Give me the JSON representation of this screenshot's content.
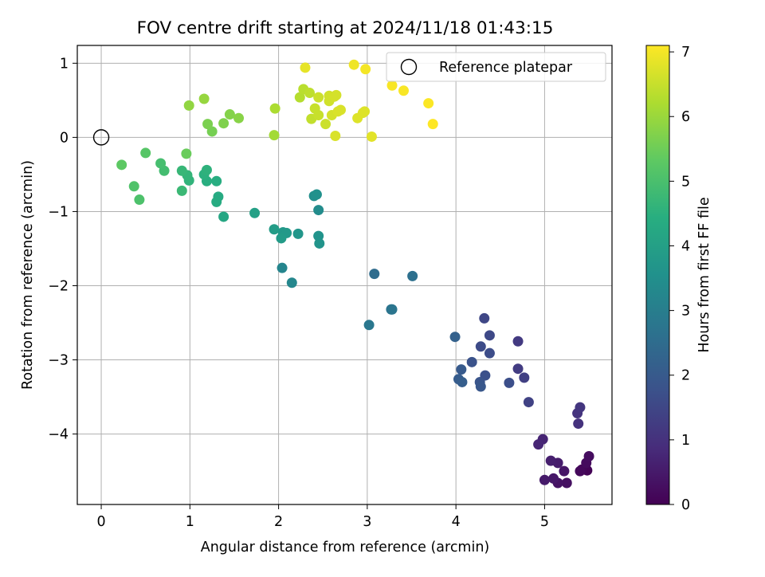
{
  "chart_data": {
    "type": "scatter",
    "title": "FOV centre drift starting at 2024/11/18 01:43:15",
    "xlabel": "Angular distance from reference (arcmin)",
    "ylabel": "Rotation from reference (arcmin)",
    "xlim": [
      -0.27,
      5.76
    ],
    "ylim": [
      -4.95,
      1.24
    ],
    "xticks": [
      0,
      1,
      2,
      3,
      4,
      5
    ],
    "yticks": [
      -4,
      -3,
      -2,
      -1,
      0,
      1
    ],
    "xtick_labels": [
      "0",
      "1",
      "2",
      "3",
      "4",
      "5"
    ],
    "ytick_labels": [
      "−4",
      "−3",
      "−2",
      "−1",
      "0",
      "1"
    ],
    "grid": true,
    "colorbar": {
      "label": "Hours from first FF file",
      "colormap": "viridis",
      "range": [
        0,
        7.1
      ],
      "ticks": [
        0,
        1,
        2,
        3,
        4,
        5,
        6,
        7
      ],
      "tick_labels": [
        "0",
        "1",
        "2",
        "3",
        "4",
        "5",
        "6",
        "7"
      ]
    },
    "legend": {
      "position": "top-right",
      "entries": [
        "Reference platepar"
      ]
    },
    "reference_point": {
      "label": "Reference platepar",
      "x": 0,
      "y": 0,
      "marker": "open-circle"
    },
    "points": [
      {
        "x": 5.48,
        "y": -4.49,
        "h": 0.05
      },
      {
        "x": 5.42,
        "y": -4.48,
        "h": 0.1
      },
      {
        "x": 5.4,
        "y": -4.5,
        "h": 0.15
      },
      {
        "x": 5.47,
        "y": -4.39,
        "h": 0.2
      },
      {
        "x": 5.5,
        "y": -4.3,
        "h": 0.25
      },
      {
        "x": 5.25,
        "y": -4.66,
        "h": 0.3
      },
      {
        "x": 5.15,
        "y": -4.66,
        "h": 0.35
      },
      {
        "x": 5.22,
        "y": -4.5,
        "h": 0.4
      },
      {
        "x": 5.1,
        "y": -4.6,
        "h": 0.45
      },
      {
        "x": 5.0,
        "y": -4.62,
        "h": 0.5
      },
      {
        "x": 5.15,
        "y": -4.39,
        "h": 0.55
      },
      {
        "x": 5.07,
        "y": -4.36,
        "h": 0.6
      },
      {
        "x": 4.98,
        "y": -4.07,
        "h": 0.7
      },
      {
        "x": 4.93,
        "y": -4.14,
        "h": 0.75
      },
      {
        "x": 5.38,
        "y": -3.86,
        "h": 1.0
      },
      {
        "x": 5.37,
        "y": -3.72,
        "h": 1.05
      },
      {
        "x": 5.4,
        "y": -3.64,
        "h": 1.1
      },
      {
        "x": 4.7,
        "y": -2.75,
        "h": 1.2
      },
      {
        "x": 4.7,
        "y": -3.12,
        "h": 1.25
      },
      {
        "x": 4.77,
        "y": -3.24,
        "h": 1.35
      },
      {
        "x": 4.82,
        "y": -3.57,
        "h": 1.4
      },
      {
        "x": 4.32,
        "y": -2.44,
        "h": 1.5
      },
      {
        "x": 4.38,
        "y": -2.67,
        "h": 1.55
      },
      {
        "x": 4.28,
        "y": -2.82,
        "h": 1.6
      },
      {
        "x": 4.38,
        "y": -2.91,
        "h": 1.65
      },
      {
        "x": 4.6,
        "y": -3.31,
        "h": 1.7
      },
      {
        "x": 4.33,
        "y": -3.21,
        "h": 1.75
      },
      {
        "x": 4.18,
        "y": -3.03,
        "h": 1.8
      },
      {
        "x": 4.27,
        "y": -3.3,
        "h": 1.85
      },
      {
        "x": 4.28,
        "y": -3.36,
        "h": 1.9
      },
      {
        "x": 4.06,
        "y": -3.13,
        "h": 2.0
      },
      {
        "x": 4.03,
        "y": -3.26,
        "h": 2.05
      },
      {
        "x": 4.07,
        "y": -3.3,
        "h": 2.1
      },
      {
        "x": 3.99,
        "y": -2.69,
        "h": 2.2
      },
      {
        "x": 3.08,
        "y": -1.84,
        "h": 2.5
      },
      {
        "x": 3.51,
        "y": -1.87,
        "h": 2.6
      },
      {
        "x": 3.27,
        "y": -2.32,
        "h": 2.7
      },
      {
        "x": 3.28,
        "y": -2.32,
        "h": 2.75
      },
      {
        "x": 3.02,
        "y": -2.53,
        "h": 2.8
      },
      {
        "x": 2.04,
        "y": -1.76,
        "h": 3.2
      },
      {
        "x": 2.15,
        "y": -1.96,
        "h": 3.25
      },
      {
        "x": 2.45,
        "y": -0.98,
        "h": 3.4
      },
      {
        "x": 2.4,
        "y": -0.79,
        "h": 3.5
      },
      {
        "x": 2.43,
        "y": -0.77,
        "h": 3.55
      },
      {
        "x": 2.45,
        "y": -1.33,
        "h": 3.6
      },
      {
        "x": 2.46,
        "y": -1.43,
        "h": 3.65
      },
      {
        "x": 2.22,
        "y": -1.3,
        "h": 3.7
      },
      {
        "x": 2.05,
        "y": -1.28,
        "h": 3.75
      },
      {
        "x": 2.09,
        "y": -1.29,
        "h": 3.8
      },
      {
        "x": 2.03,
        "y": -1.36,
        "h": 3.85
      },
      {
        "x": 1.95,
        "y": -1.24,
        "h": 3.9
      },
      {
        "x": 1.73,
        "y": -1.02,
        "h": 4.0
      },
      {
        "x": 1.38,
        "y": -1.07,
        "h": 4.2
      },
      {
        "x": 1.32,
        "y": -0.8,
        "h": 4.3
      },
      {
        "x": 1.3,
        "y": -0.87,
        "h": 4.35
      },
      {
        "x": 1.3,
        "y": -0.59,
        "h": 4.4
      },
      {
        "x": 1.19,
        "y": -0.59,
        "h": 4.45
      },
      {
        "x": 1.16,
        "y": -0.5,
        "h": 4.5
      },
      {
        "x": 1.19,
        "y": -0.44,
        "h": 4.55
      },
      {
        "x": 0.99,
        "y": -0.58,
        "h": 4.6
      },
      {
        "x": 0.97,
        "y": -0.51,
        "h": 4.65
      },
      {
        "x": 0.91,
        "y": -0.45,
        "h": 4.7
      },
      {
        "x": 0.91,
        "y": -0.72,
        "h": 4.75
      },
      {
        "x": 0.71,
        "y": -0.45,
        "h": 4.9
      },
      {
        "x": 0.67,
        "y": -0.35,
        "h": 4.95
      },
      {
        "x": 0.43,
        "y": -0.84,
        "h": 5.05
      },
      {
        "x": 0.37,
        "y": -0.66,
        "h": 5.1
      },
      {
        "x": 0.5,
        "y": -0.21,
        "h": 5.2
      },
      {
        "x": 0.23,
        "y": -0.37,
        "h": 5.3
      },
      {
        "x": 0.96,
        "y": -0.22,
        "h": 5.45
      },
      {
        "x": 1.25,
        "y": 0.08,
        "h": 5.6
      },
      {
        "x": 1.2,
        "y": 0.18,
        "h": 5.65
      },
      {
        "x": 1.38,
        "y": 0.19,
        "h": 5.7
      },
      {
        "x": 1.45,
        "y": 0.31,
        "h": 5.75
      },
      {
        "x": 1.55,
        "y": 0.26,
        "h": 5.8
      },
      {
        "x": 0.99,
        "y": 0.43,
        "h": 5.9
      },
      {
        "x": 1.16,
        "y": 0.52,
        "h": 5.95
      },
      {
        "x": 1.95,
        "y": 0.03,
        "h": 6.1
      },
      {
        "x": 1.96,
        "y": 0.39,
        "h": 6.2
      },
      {
        "x": 2.24,
        "y": 0.54,
        "h": 6.3
      },
      {
        "x": 2.28,
        "y": 0.65,
        "h": 6.35
      },
      {
        "x": 2.35,
        "y": 0.6,
        "h": 6.4
      },
      {
        "x": 2.37,
        "y": 0.25,
        "h": 6.45
      },
      {
        "x": 2.41,
        "y": 0.39,
        "h": 6.5
      },
      {
        "x": 2.45,
        "y": 0.54,
        "h": 6.55
      },
      {
        "x": 2.45,
        "y": 0.3,
        "h": 6.5
      },
      {
        "x": 2.53,
        "y": 0.18,
        "h": 6.55
      },
      {
        "x": 2.57,
        "y": 0.49,
        "h": 6.6
      },
      {
        "x": 2.57,
        "y": 0.56,
        "h": 6.6
      },
      {
        "x": 2.6,
        "y": 0.3,
        "h": 6.65
      },
      {
        "x": 2.63,
        "y": 0.55,
        "h": 6.65
      },
      {
        "x": 2.65,
        "y": 0.57,
        "h": 6.65
      },
      {
        "x": 2.67,
        "y": 0.35,
        "h": 6.7
      },
      {
        "x": 2.7,
        "y": 0.37,
        "h": 6.7
      },
      {
        "x": 2.64,
        "y": 0.02,
        "h": 6.7
      },
      {
        "x": 2.89,
        "y": 0.26,
        "h": 6.75
      },
      {
        "x": 2.95,
        "y": 0.33,
        "h": 6.75
      },
      {
        "x": 2.97,
        "y": 0.35,
        "h": 6.75
      },
      {
        "x": 3.05,
        "y": 0.01,
        "h": 6.8
      },
      {
        "x": 2.3,
        "y": 0.94,
        "h": 6.85
      },
      {
        "x": 2.85,
        "y": 0.98,
        "h": 6.95
      },
      {
        "x": 2.98,
        "y": 0.92,
        "h": 7.0
      },
      {
        "x": 3.28,
        "y": 0.7,
        "h": 7.05
      },
      {
        "x": 3.41,
        "y": 0.63,
        "h": 7.05
      },
      {
        "x": 3.69,
        "y": 0.46,
        "h": 7.08
      },
      {
        "x": 3.74,
        "y": 0.18,
        "h": 7.1
      }
    ]
  }
}
